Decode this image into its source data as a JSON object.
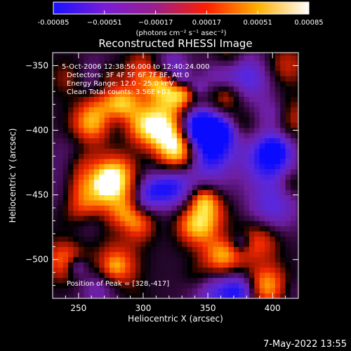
{
  "chart_data": {
    "type": "heatmap",
    "title": "Reconstructed RHESSI Image",
    "xlabel": "Heliocentric X (arcsec)",
    "ylabel": "Heliocentric Y (arcsec)",
    "xlim": [
      230,
      420
    ],
    "ylim": [
      -530,
      -340
    ],
    "x_ticks": [
      250,
      300,
      350,
      400
    ],
    "y_ticks": [
      -350,
      -400,
      -450,
      -500
    ],
    "colorbar": {
      "range": [
        -0.00085,
        0.00085
      ],
      "tick_values": [
        -0.00085,
        -0.00051,
        -0.00017,
        0.00017,
        0.00051,
        0.00085
      ],
      "tick_labels": [
        "-0.00085",
        "−0.00051",
        "−0.00017",
        "0.00017",
        "0.00051",
        "0.00085"
      ],
      "unit_label": "(photons cm⁻² s⁻¹ asec⁻²)",
      "colors": [
        "#1a12ff",
        "#7a1cd8",
        "#9a1f8a",
        "#ff1e00",
        "#ffb000",
        "#ffffff"
      ]
    },
    "annotations": [
      "5-Oct-2006 12:38:56.000 to 12:40:24.000",
      "Detectors: 3F 4F 5F 6F 7F 8F, Att 0",
      "Energy Range: 12.0 - 25.0 keV",
      "Clean     Total counts: 3.56E+03"
    ],
    "peak_label": "Position of Peak = [328,-417]",
    "peak": [
      328,
      -417
    ],
    "bright_regions": [
      {
        "x": 328,
        "y": -417,
        "value": 0.00085
      },
      {
        "x": 318,
        "y": -400,
        "value": 0.0007
      },
      {
        "x": 300,
        "y": -395,
        "value": 0.0006
      },
      {
        "x": 320,
        "y": -375,
        "value": 0.0005
      },
      {
        "x": 260,
        "y": -395,
        "value": 0.0006
      },
      {
        "x": 275,
        "y": -440,
        "value": 0.0006
      },
      {
        "x": 255,
        "y": -455,
        "value": 0.0005
      },
      {
        "x": 295,
        "y": -470,
        "value": 0.0005
      },
      {
        "x": 340,
        "y": -470,
        "value": 0.0004
      },
      {
        "x": 360,
        "y": -500,
        "value": 0.0004
      },
      {
        "x": 390,
        "y": -485,
        "value": 0.0004
      },
      {
        "x": 410,
        "y": -390,
        "value": 0.0005
      },
      {
        "x": 240,
        "y": -500,
        "value": 0.0005
      },
      {
        "x": 280,
        "y": -505,
        "value": 0.0005
      },
      {
        "x": 395,
        "y": -520,
        "value": 0.0006
      },
      {
        "x": 245,
        "y": -360,
        "value": 0.0004
      },
      {
        "x": 300,
        "y": -355,
        "value": 0.0004
      },
      {
        "x": 410,
        "y": -350,
        "value": 0.0003
      }
    ],
    "dark_regions": [
      {
        "x": 350,
        "y": -420,
        "value": -0.0008
      },
      {
        "x": 380,
        "y": -360,
        "value": -0.0006
      },
      {
        "x": 395,
        "y": -425,
        "value": -0.0006
      },
      {
        "x": 320,
        "y": -455,
        "value": -0.0005
      },
      {
        "x": 400,
        "y": -460,
        "value": -0.0005
      },
      {
        "x": 360,
        "y": -525,
        "value": -0.0006
      },
      {
        "x": 250,
        "y": -425,
        "value": -0.0004
      }
    ]
  },
  "footer_date": "7-May-2022 13:55"
}
